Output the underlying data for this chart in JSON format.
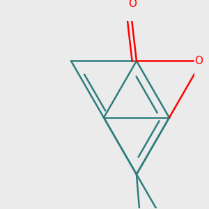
{
  "bg_color": "#ebebeb",
  "bond_color": "#2d7d7d",
  "atom_color_O": "#ff0000",
  "line_width": 1.8,
  "dbo": 0.13,
  "font_size": 11,
  "fig_size": [
    3.0,
    3.0
  ],
  "dpi": 100
}
